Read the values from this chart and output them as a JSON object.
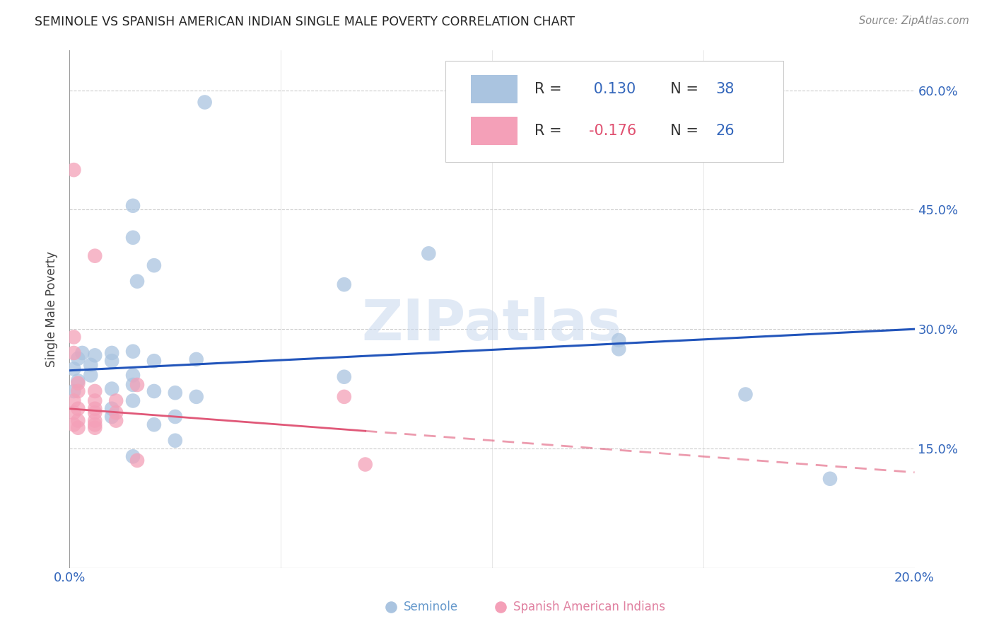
{
  "title": "SEMINOLE VS SPANISH AMERICAN INDIAN SINGLE MALE POVERTY CORRELATION CHART",
  "source": "Source: ZipAtlas.com",
  "ylabel": "Single Male Poverty",
  "xlim": [
    0.0,
    0.2
  ],
  "ylim": [
    0.0,
    0.65
  ],
  "R_seminole": 0.13,
  "N_seminole": 38,
  "R_spanish": -0.176,
  "N_spanish": 26,
  "seminole_color": "#aac4e0",
  "spanish_color": "#f4a0b8",
  "seminole_line_color": "#2255bb",
  "spanish_line_color": "#e05878",
  "seminole_line_x": [
    0.0,
    0.2
  ],
  "seminole_line_y": [
    0.248,
    0.3
  ],
  "spanish_line_x": [
    0.0,
    0.2
  ],
  "spanish_line_y": [
    0.2,
    0.12
  ],
  "spanish_line_dash": [
    0.07,
    0.2
  ],
  "seminole_scatter": [
    [
      0.032,
      0.585
    ],
    [
      0.002,
      0.263
    ],
    [
      0.003,
      0.27
    ],
    [
      0.001,
      0.25
    ],
    [
      0.002,
      0.235
    ],
    [
      0.001,
      0.222
    ],
    [
      0.006,
      0.267
    ],
    [
      0.005,
      0.255
    ],
    [
      0.005,
      0.242
    ],
    [
      0.01,
      0.27
    ],
    [
      0.01,
      0.26
    ],
    [
      0.01,
      0.225
    ],
    [
      0.01,
      0.2
    ],
    [
      0.01,
      0.19
    ],
    [
      0.015,
      0.455
    ],
    [
      0.015,
      0.415
    ],
    [
      0.016,
      0.36
    ],
    [
      0.015,
      0.272
    ],
    [
      0.015,
      0.242
    ],
    [
      0.015,
      0.23
    ],
    [
      0.015,
      0.21
    ],
    [
      0.015,
      0.14
    ],
    [
      0.02,
      0.38
    ],
    [
      0.02,
      0.26
    ],
    [
      0.02,
      0.222
    ],
    [
      0.02,
      0.18
    ],
    [
      0.025,
      0.22
    ],
    [
      0.025,
      0.19
    ],
    [
      0.025,
      0.16
    ],
    [
      0.03,
      0.262
    ],
    [
      0.03,
      0.215
    ],
    [
      0.065,
      0.356
    ],
    [
      0.065,
      0.24
    ],
    [
      0.085,
      0.395
    ],
    [
      0.13,
      0.286
    ],
    [
      0.13,
      0.275
    ],
    [
      0.16,
      0.218
    ],
    [
      0.18,
      0.112
    ]
  ],
  "spanish_scatter": [
    [
      0.001,
      0.5
    ],
    [
      0.001,
      0.29
    ],
    [
      0.001,
      0.27
    ],
    [
      0.002,
      0.232
    ],
    [
      0.002,
      0.222
    ],
    [
      0.001,
      0.21
    ],
    [
      0.002,
      0.2
    ],
    [
      0.001,
      0.195
    ],
    [
      0.002,
      0.185
    ],
    [
      0.001,
      0.18
    ],
    [
      0.002,
      0.176
    ],
    [
      0.006,
      0.392
    ],
    [
      0.006,
      0.222
    ],
    [
      0.006,
      0.21
    ],
    [
      0.006,
      0.2
    ],
    [
      0.006,
      0.195
    ],
    [
      0.006,
      0.185
    ],
    [
      0.006,
      0.18
    ],
    [
      0.006,
      0.176
    ],
    [
      0.011,
      0.21
    ],
    [
      0.011,
      0.195
    ],
    [
      0.011,
      0.185
    ],
    [
      0.016,
      0.23
    ],
    [
      0.016,
      0.135
    ],
    [
      0.065,
      0.215
    ],
    [
      0.07,
      0.13
    ]
  ],
  "watermark": "ZIPatlas"
}
